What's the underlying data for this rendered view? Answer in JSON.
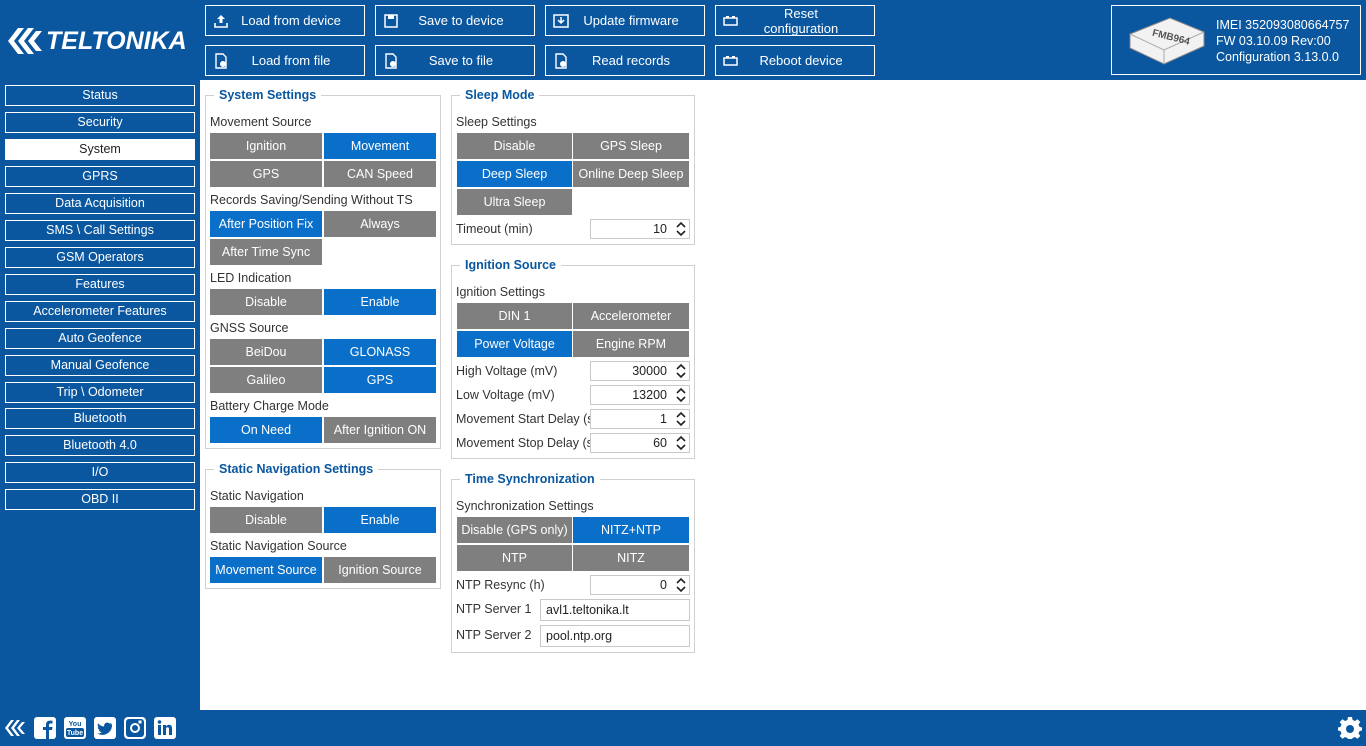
{
  "toolbar": {
    "brand": "TELTONIKA",
    "buttons": [
      {
        "label": "Load from device",
        "icon": "upload-icon"
      },
      {
        "label": "Save to device",
        "icon": "save-icon"
      },
      {
        "label": "Update firmware",
        "icon": "firmware-icon"
      },
      {
        "label": "Reset configuration",
        "icon": "battery-icon"
      },
      {
        "label": "Load from file",
        "icon": "file-icon"
      },
      {
        "label": "Save to file",
        "icon": "file-check-icon"
      },
      {
        "label": "Read records",
        "icon": "file-check-icon"
      },
      {
        "label": "Reboot device",
        "icon": "battery-icon"
      }
    ]
  },
  "device": {
    "model": "FMB964",
    "imei": "IMEI  352093080664757",
    "fw": "FW  03.10.09 Rev:00",
    "config": "Configuration  3.13.0.0"
  },
  "sidebar": {
    "items": [
      "Status",
      "Security",
      "System",
      "GPRS",
      "Data Acquisition",
      "SMS \\ Call Settings",
      "GSM Operators",
      "Features",
      "Accelerometer Features",
      "Auto Geofence",
      "Manual Geofence",
      "Trip \\ Odometer",
      "Bluetooth",
      "Bluetooth 4.0",
      "I/O",
      "OBD II"
    ],
    "active": "System"
  },
  "system_settings": {
    "title": "System Settings",
    "movement_source_label": "Movement Source",
    "movement_source": [
      "Ignition",
      "Movement",
      "GPS",
      "CAN Speed"
    ],
    "records_label": "Records Saving/Sending Without TS",
    "records": [
      "After Position Fix",
      "Always",
      "After Time Sync"
    ],
    "led_label": "LED Indication",
    "led": [
      "Disable",
      "Enable"
    ],
    "gnss_label": "GNSS Source",
    "gnss": [
      "BeiDou",
      "GLONASS",
      "Galileo",
      "GPS"
    ],
    "battery_label": "Battery Charge Mode",
    "battery": [
      "On Need",
      "After Ignition ON"
    ]
  },
  "static_nav": {
    "title": "Static Navigation Settings",
    "nav_label": "Static Navigation",
    "nav": [
      "Disable",
      "Enable"
    ],
    "source_label": "Static Navigation Source",
    "source": [
      "Movement Source",
      "Ignition Source"
    ]
  },
  "sleep_mode": {
    "title": "Sleep Mode",
    "settings_label": "Sleep Settings",
    "options": [
      "Disable",
      "GPS Sleep",
      "Deep Sleep",
      "Online Deep Sleep",
      "Ultra Sleep"
    ],
    "timeout_label": "Timeout (min)",
    "timeout_value": "10"
  },
  "ignition_source": {
    "title": "Ignition Source",
    "settings_label": "Ignition Settings",
    "options": [
      "DIN 1",
      "Accelerometer",
      "Power Voltage",
      "Engine RPM"
    ],
    "high_voltage_label": "High Voltage (mV)",
    "high_voltage": "30000",
    "low_voltage_label": "Low Voltage (mV)",
    "low_voltage": "13200",
    "start_delay_label": "Movement Start Delay (s)",
    "start_delay": "1",
    "stop_delay_label": "Movement Stop Delay (s)",
    "stop_delay": "60"
  },
  "time_sync": {
    "title": "Time Synchronization",
    "settings_label": "Synchronization Settings",
    "options": [
      "Disable (GPS only)",
      "NITZ+NTP",
      "NTP",
      "NITZ"
    ],
    "resync_label": "NTP Resync (h)",
    "resync": "0",
    "server1_label": "NTP Server 1",
    "server1": "avl1.teltonika.lt",
    "server2_label": "NTP Server 2",
    "server2": "pool.ntp.org"
  },
  "colors": {
    "brand_blue": "#0a57a0",
    "selected": "#0a6fc9",
    "unselected": "#7f7f7f"
  },
  "footer": {
    "icons": [
      "teltonika-icon",
      "facebook-icon",
      "youtube-icon",
      "twitter-icon",
      "instagram-icon",
      "linkedin-icon",
      "settings-gear-icon"
    ]
  }
}
